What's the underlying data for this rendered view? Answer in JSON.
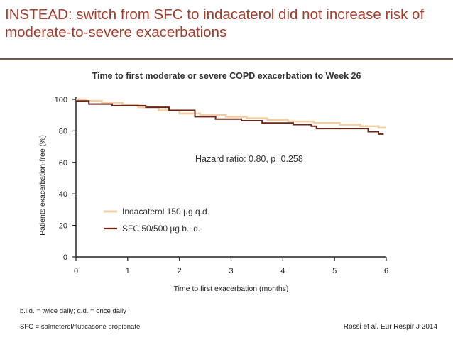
{
  "slide": {
    "title": "INSTEAD: switch from SFC to indacaterol did not increase risk of moderate-to-severe exacerbations",
    "footnote1": "b.i.d. = twice daily; q.d. = once daily",
    "footnote2": "SFC = salmeterol/fluticasone propionate",
    "citation": "Rossi et al. Eur Respir J 2014"
  },
  "chart_data": {
    "type": "line",
    "title": "Time to first moderate or severe COPD exacerbation to Week 26",
    "xlabel": "Time to first exacerbation (months)",
    "ylabel": "Patients exacerbation-free (%)",
    "xlim": [
      0,
      6
    ],
    "ylim": [
      0,
      100
    ],
    "xticks": [
      "0",
      "1",
      "2",
      "3",
      "4",
      "5",
      "6"
    ],
    "yticks": [
      "0",
      "20",
      "40",
      "60",
      "80",
      "100"
    ],
    "annotation": "Hazard ratio: 0.80, p=0.258",
    "legend_position": "lower-left",
    "grid": false,
    "series": [
      {
        "name": "Indacaterol 150 µg q.d.",
        "color": "#f0cfa4",
        "step": true,
        "x": [
          0,
          0.2,
          0.5,
          0.9,
          1.2,
          1.6,
          2.0,
          2.4,
          2.9,
          3.3,
          3.7,
          4.1,
          4.6,
          5.1,
          5.5,
          5.85
        ],
        "y": [
          100,
          99,
          98,
          96.5,
          95,
          93,
          91,
          90,
          89,
          88,
          87,
          86,
          85,
          84,
          83,
          82
        ]
      },
      {
        "name": "SFC 50/500 µg b.i.d.",
        "color": "#6a2418",
        "step": true,
        "x": [
          0,
          0.25,
          0.7,
          1.35,
          1.8,
          2.3,
          2.7,
          3.2,
          3.6,
          4.2,
          4.55,
          4.65,
          5.1,
          5.65,
          5.85
        ],
        "y": [
          99,
          97,
          96,
          95,
          93,
          89,
          87.5,
          86.5,
          85,
          84,
          83,
          81.5,
          81.5,
          79.5,
          78
        ]
      }
    ]
  }
}
